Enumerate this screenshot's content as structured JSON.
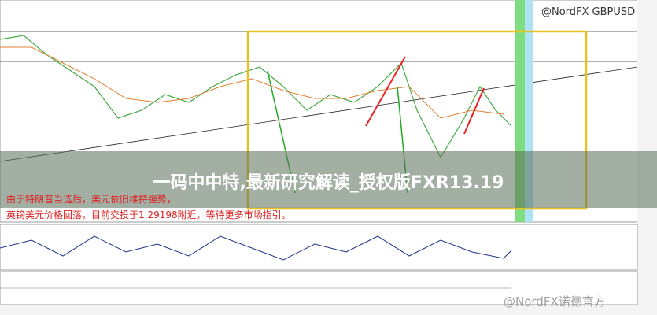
{
  "watermark_top": "@NordFX GBPUSD",
  "banner": "一码中中特,最新研究解读_授权版FXR13.19",
  "annotation": [
    "由于特朗普当选后，美元依旧维持强势，",
    "英镑美元价格回落，目前交投于1.29198附近，等待更多市场指引。"
  ],
  "watermark_bottom": "@NordFX诺德官方"
}
